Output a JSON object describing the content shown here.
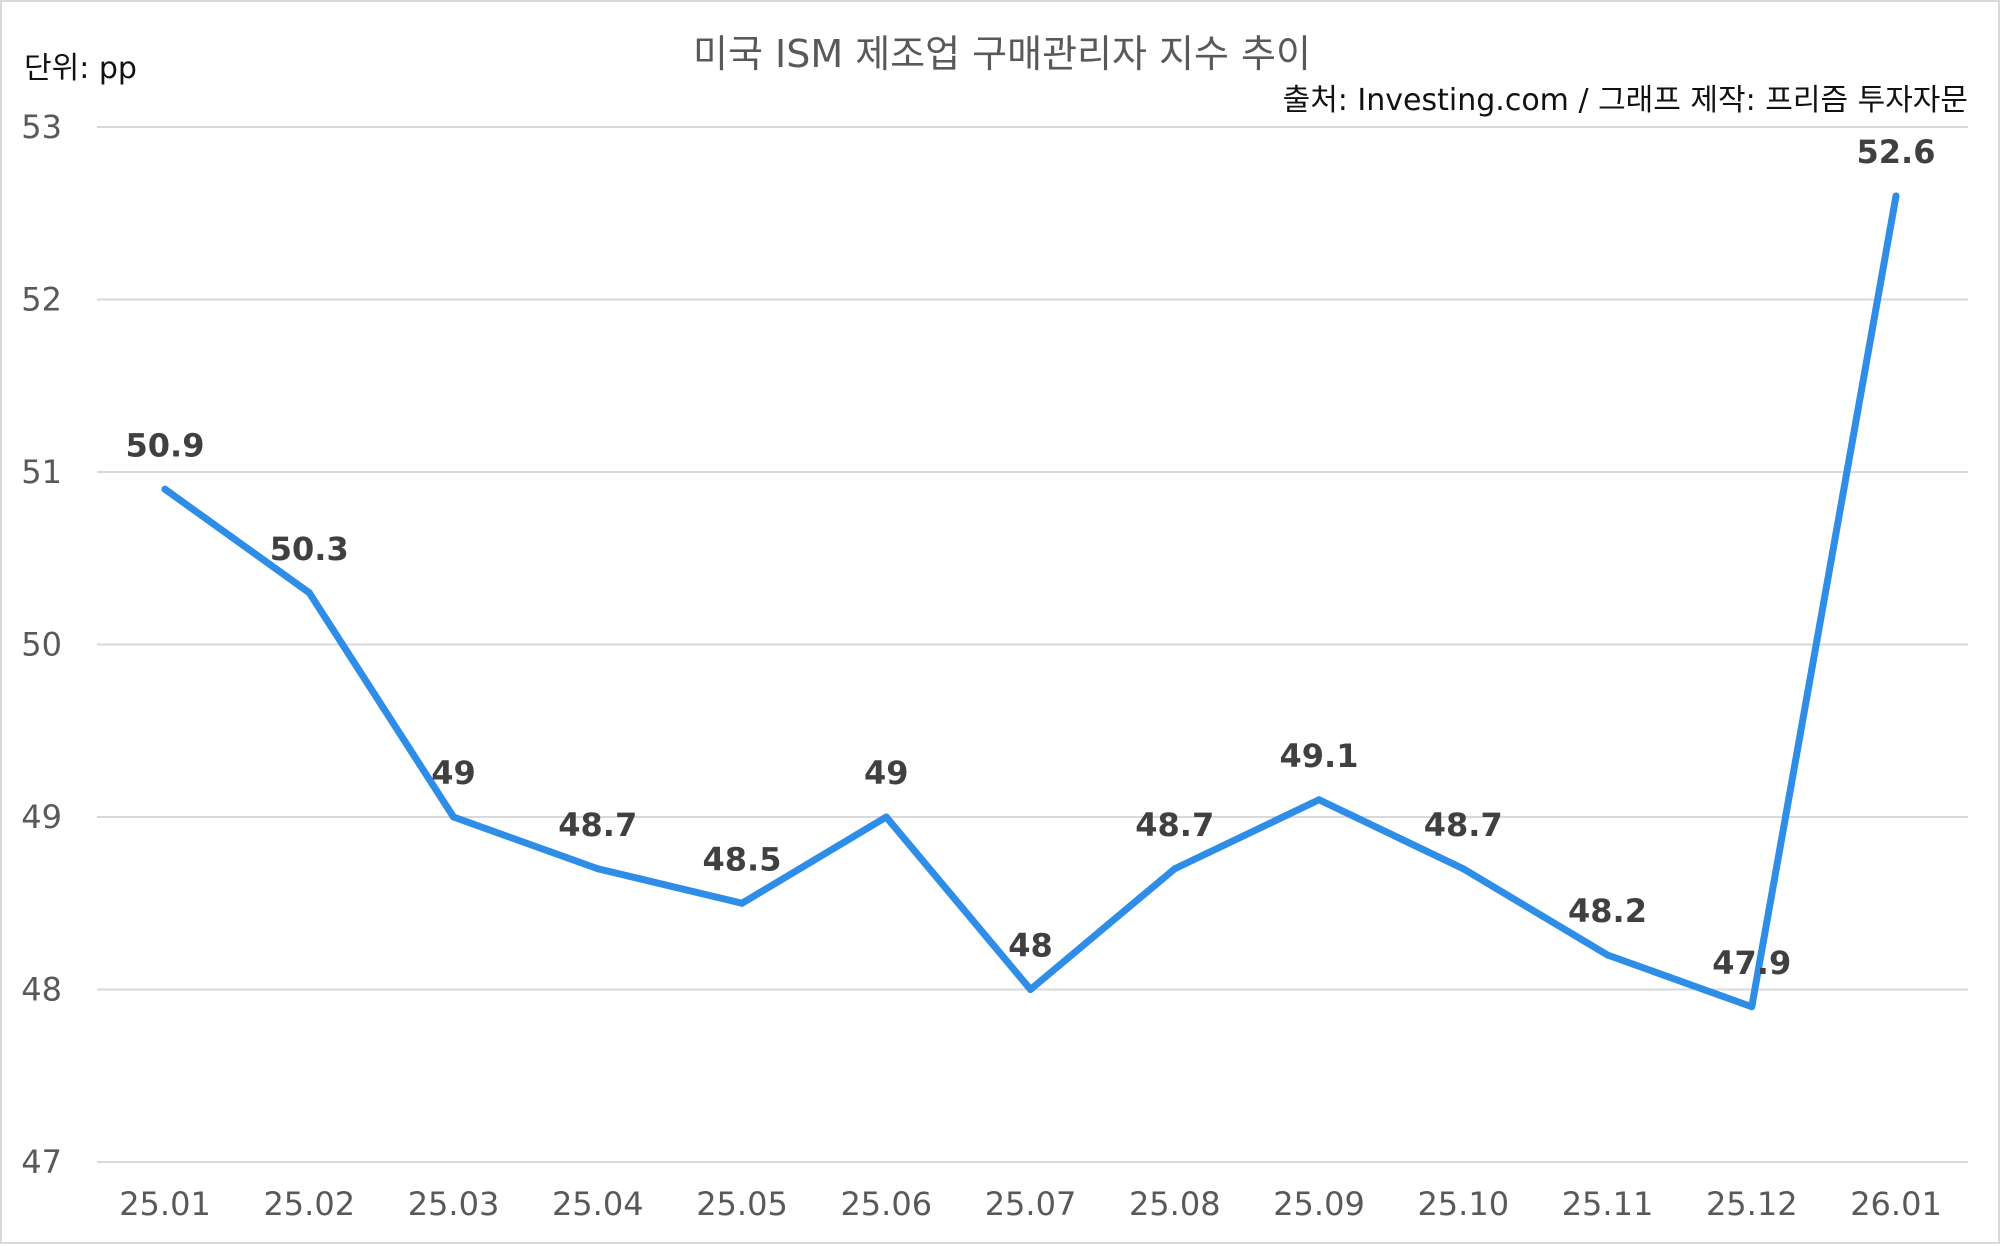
{
  "chart_data": {
    "type": "line",
    "title": "미국 ISM 제조업 구매관리자 지수 추이",
    "unit_label": "단위: pp",
    "source_label": "출처: Investing.com / 그래프 제작: 프리즘 투자자문",
    "categories": [
      "25.01",
      "25.02",
      "25.03",
      "25.04",
      "25.05",
      "25.06",
      "25.07",
      "25.08",
      "25.09",
      "25.10",
      "25.11",
      "25.12",
      "26.01"
    ],
    "series": [
      {
        "values": [
          50.9,
          50.3,
          49,
          48.7,
          48.5,
          49,
          48,
          48.7,
          49.1,
          48.7,
          48.2,
          47.9,
          52.6
        ],
        "labels": [
          "50.9",
          "50.3",
          "49",
          "48.7",
          "48.5",
          "49",
          "48",
          "48.7",
          "49.1",
          "48.7",
          "48.2",
          "47.9",
          "52.6"
        ],
        "color": "#2e8de6"
      }
    ],
    "yticks": [
      "47",
      "48",
      "49",
      "50",
      "51",
      "52",
      "53"
    ],
    "ylim": [
      47,
      53
    ],
    "grid": true,
    "legend": "none"
  }
}
